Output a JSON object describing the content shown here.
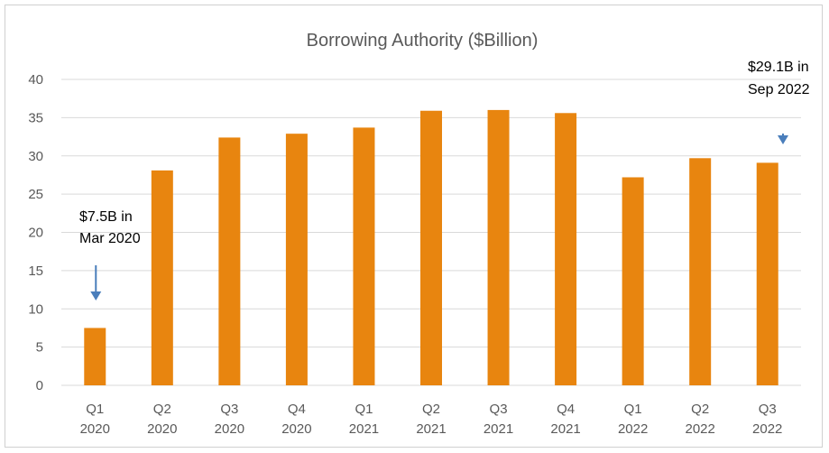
{
  "chart_data": {
    "type": "bar",
    "title": "Borrowing Authority ($Billion)",
    "xlabel": "",
    "ylabel": "",
    "categories": [
      [
        "Q1",
        "2020"
      ],
      [
        "Q2",
        "2020"
      ],
      [
        "Q3",
        "2020"
      ],
      [
        "Q4",
        "2020"
      ],
      [
        "Q1",
        "2021"
      ],
      [
        "Q2",
        "2021"
      ],
      [
        "Q3",
        "2021"
      ],
      [
        "Q4",
        "2021"
      ],
      [
        "Q1",
        "2022"
      ],
      [
        "Q2",
        "2022"
      ],
      [
        "Q3",
        "2022"
      ]
    ],
    "values": [
      7.5,
      28.1,
      32.4,
      32.9,
      33.7,
      35.9,
      36.0,
      35.6,
      27.2,
      29.7,
      29.1
    ],
    "ylim": [
      0,
      40
    ],
    "yticks": [
      0,
      5,
      10,
      15,
      20,
      25,
      30,
      35,
      40
    ],
    "grid": true,
    "legend": "none",
    "colors": {
      "bar": "#e8850f",
      "grid": "#d9d9d9",
      "text": "#595959",
      "arrow": "#4a7ebb"
    },
    "annotations": [
      {
        "lines": [
          "$7.5B in",
          "Mar 2020"
        ],
        "category_index": 0
      },
      {
        "lines": [
          "$29.1B in",
          "Sep 2022"
        ],
        "category_index": 10
      }
    ]
  }
}
